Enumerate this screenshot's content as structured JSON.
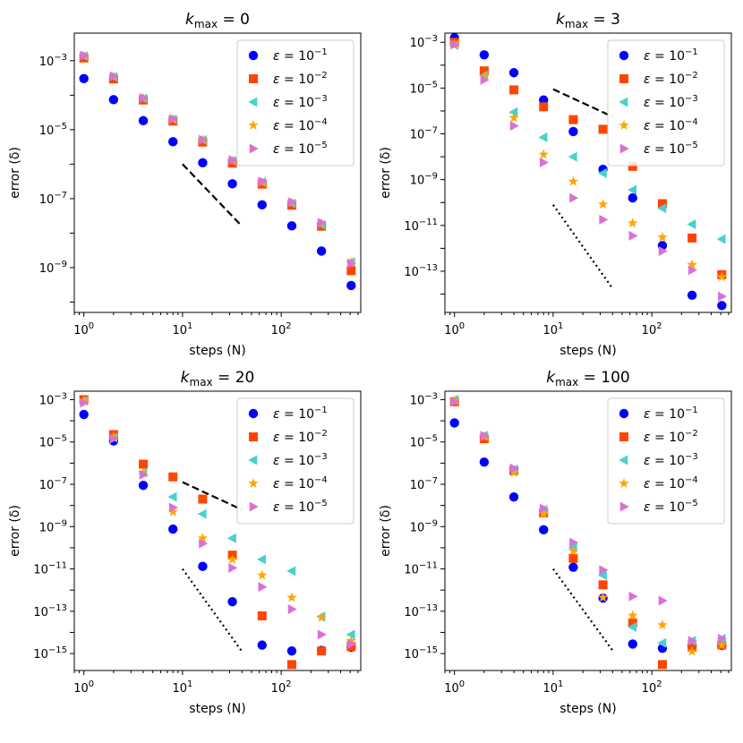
{
  "figure": {
    "description_colors": {
      "1e-1": "#0000ff",
      "1e-2": "#ff4500",
      "1e-3": "#48d1cc",
      "1e-4": "#ffa500",
      "1e-5": "#da70d6"
    }
  },
  "chart_data": [
    {
      "type": "scatter",
      "title_prefix": "k",
      "title_sub": "max",
      "title_value": "= 0",
      "xlabel": "steps (N)",
      "ylabel": "error (δ)",
      "xscale": "log",
      "yscale": "log",
      "xlim": [
        0.8,
        640
      ],
      "ylim_exp": [
        -10.3,
        -2.2
      ],
      "xticks": [
        {
          "base": "10",
          "exp": "0",
          "value": 1
        },
        {
          "base": "10",
          "exp": "1",
          "value": 10
        },
        {
          "base": "10",
          "exp": "2",
          "value": 100
        }
      ],
      "yticks": [
        {
          "base": "10",
          "exp": "−3",
          "value_exp": -3
        },
        {
          "base": "10",
          "exp": "−5",
          "value_exp": -5
        },
        {
          "base": "10",
          "exp": "−7",
          "value_exp": -7
        },
        {
          "base": "10",
          "exp": "−9",
          "value_exp": -9
        }
      ],
      "x": [
        1,
        2,
        4,
        8,
        16,
        32,
        64,
        128,
        256,
        512
      ],
      "series": [
        {
          "name_base": "ε = 10",
          "name_exp": "−1",
          "marker": "circle",
          "color": "#0000ff",
          "log10_values": [
            -3.52,
            -4.13,
            -4.74,
            -5.35,
            -5.96,
            -6.57,
            -7.18,
            -7.79,
            -8.52,
            -9.52
          ]
        },
        {
          "name_base": "ε = 10",
          "name_exp": "−2",
          "marker": "square",
          "color": "#ff4500",
          "log10_values": [
            -2.92,
            -3.53,
            -4.14,
            -4.75,
            -5.36,
            -5.97,
            -6.58,
            -7.19,
            -7.8,
            -9.09
          ]
        },
        {
          "name_base": "ε = 10",
          "name_exp": "−3",
          "marker": "triangle-left",
          "color": "#48d1cc",
          "log10_values": [
            -2.87,
            -3.47,
            -4.1,
            -4.7,
            -5.3,
            -5.9,
            -6.52,
            -7.14,
            -7.76,
            -8.84
          ]
        },
        {
          "name_base": "ε = 10",
          "name_exp": "−4",
          "marker": "star",
          "color": "#ffa500",
          "log10_values": [
            -2.86,
            -3.46,
            -4.09,
            -4.7,
            -5.3,
            -5.9,
            -6.53,
            -7.12,
            -7.72,
            -8.85
          ]
        },
        {
          "name_base": "ε = 10",
          "name_exp": "−5",
          "marker": "triangle-right",
          "color": "#da70d6",
          "log10_values": [
            -2.85,
            -3.45,
            -4.08,
            -4.69,
            -5.29,
            -5.88,
            -6.5,
            -7.1,
            -7.7,
            -8.88
          ]
        }
      ],
      "guides": [
        {
          "style": "dashed",
          "x": [
            10,
            40
          ],
          "log10_y": [
            -6.0,
            -7.8
          ]
        }
      ],
      "legend_position": "top-right"
    },
    {
      "type": "scatter",
      "title_prefix": "k",
      "title_sub": "max",
      "title_value": "= 3",
      "xlabel": "steps (N)",
      "ylabel": "error (δ)",
      "xscale": "log",
      "yscale": "log",
      "xlim": [
        0.8,
        640
      ],
      "ylim_exp": [
        -14.8,
        -2.6
      ],
      "xticks": [
        {
          "base": "10",
          "exp": "0",
          "value": 1
        },
        {
          "base": "10",
          "exp": "1",
          "value": 10
        },
        {
          "base": "10",
          "exp": "2",
          "value": 100
        }
      ],
      "yticks": [
        {
          "base": "10",
          "exp": "−3",
          "value_exp": -3
        },
        {
          "base": "10",
          "exp": "−5",
          "value_exp": -5
        },
        {
          "base": "10",
          "exp": "−7",
          "value_exp": -7
        },
        {
          "base": "10",
          "exp": "−9",
          "value_exp": -9
        },
        {
          "base": "10",
          "exp": "−11",
          "value_exp": -11
        },
        {
          "base": "10",
          "exp": "−13",
          "value_exp": -13
        }
      ],
      "x": [
        1,
        2,
        4,
        8,
        16,
        32,
        64,
        128,
        256,
        512
      ],
      "series": [
        {
          "name_base": "ε = 10",
          "name_exp": "−1",
          "marker": "circle",
          "color": "#0000ff",
          "log10_values": [
            -2.8,
            -3.55,
            -4.33,
            -5.52,
            -6.9,
            -8.55,
            -9.8,
            -11.88,
            -14.05,
            -14.5
          ]
        },
        {
          "name_base": "ε = 10",
          "name_exp": "−2",
          "marker": "square",
          "color": "#ff4500",
          "log10_values": [
            -3.0,
            -4.25,
            -5.08,
            -5.82,
            -6.38,
            -6.8,
            -8.42,
            -10.05,
            -11.55,
            -13.15
          ]
        },
        {
          "name_base": "ε = 10",
          "name_exp": "−3",
          "marker": "triangle-left",
          "color": "#48d1cc",
          "log10_values": [
            -3.12,
            -4.45,
            -6.05,
            -7.15,
            -8.0,
            -8.72,
            -9.45,
            -10.25,
            -10.95,
            -11.6
          ]
        },
        {
          "name_base": "ε = 10",
          "name_exp": "−4",
          "marker": "star",
          "color": "#ffa500",
          "log10_values": [
            -3.08,
            -4.5,
            -6.3,
            -7.9,
            -9.08,
            -10.08,
            -10.9,
            -11.52,
            -12.72,
            -13.25
          ]
        },
        {
          "name_base": "ε = 10",
          "name_exp": "−5",
          "marker": "triangle-right",
          "color": "#da70d6",
          "log10_values": [
            -3.1,
            -4.65,
            -6.65,
            -8.25,
            -9.8,
            -10.75,
            -11.45,
            -12.12,
            -12.95,
            -14.1
          ]
        }
      ],
      "guides": [
        {
          "style": "dashed",
          "x": [
            10,
            40
          ],
          "log10_y": [
            -5.05,
            -6.25
          ]
        },
        {
          "style": "dotted",
          "x": [
            10,
            40
          ],
          "log10_y": [
            -10.1,
            -13.75
          ]
        }
      ],
      "legend_position": "top-right"
    },
    {
      "type": "scatter",
      "title_prefix": "k",
      "title_sub": "max",
      "title_value": "= 20",
      "xlabel": "steps (N)",
      "ylabel": "error (δ)",
      "xscale": "log",
      "yscale": "log",
      "xlim": [
        0.8,
        640
      ],
      "ylim_exp": [
        -15.8,
        -2.6
      ],
      "xticks": [
        {
          "base": "10",
          "exp": "0",
          "value": 1
        },
        {
          "base": "10",
          "exp": "1",
          "value": 10
        },
        {
          "base": "10",
          "exp": "2",
          "value": 100
        }
      ],
      "yticks": [
        {
          "base": "10",
          "exp": "−3",
          "value_exp": -3
        },
        {
          "base": "10",
          "exp": "−5",
          "value_exp": -5
        },
        {
          "base": "10",
          "exp": "−7",
          "value_exp": -7
        },
        {
          "base": "10",
          "exp": "−9",
          "value_exp": -9
        },
        {
          "base": "10",
          "exp": "−11",
          "value_exp": -11
        },
        {
          "base": "10",
          "exp": "−13",
          "value_exp": -13
        },
        {
          "base": "10",
          "exp": "−15",
          "value_exp": -15
        }
      ],
      "x": [
        1,
        2,
        4,
        8,
        16,
        32,
        64,
        128,
        256,
        512
      ],
      "series": [
        {
          "name_base": "ε = 10",
          "name_exp": "−1",
          "marker": "circle",
          "color": "#0000ff",
          "log10_values": [
            -3.7,
            -4.95,
            -7.05,
            -9.12,
            -10.88,
            -12.55,
            -14.6,
            -14.88,
            -14.85,
            -14.7
          ]
        },
        {
          "name_base": "ε = 10",
          "name_exp": "−2",
          "marker": "square",
          "color": "#ff4500",
          "log10_values": [
            -3.0,
            -4.65,
            -6.05,
            -6.65,
            -7.7,
            -10.35,
            -13.22,
            -15.52,
            -14.88,
            -14.67
          ]
        },
        {
          "name_base": "ε = 10",
          "name_exp": "−3",
          "marker": "triangle-left",
          "color": "#48d1cc",
          "log10_values": [
            -3.05,
            -4.8,
            -6.45,
            -7.6,
            -8.4,
            -9.55,
            -10.55,
            -11.1,
            -13.25,
            -14.1
          ]
        },
        {
          "name_base": "ε = 10",
          "name_exp": "−4",
          "marker": "star",
          "color": "#ffa500",
          "log10_values": [
            -3.05,
            -4.75,
            -6.45,
            -8.3,
            -9.55,
            -10.55,
            -11.3,
            -12.35,
            -13.3,
            -14.4
          ]
        },
        {
          "name_base": "ε = 10",
          "name_exp": "−5",
          "marker": "triangle-right",
          "color": "#da70d6",
          "log10_values": [
            -3.15,
            -4.85,
            -6.55,
            -8.1,
            -9.8,
            -10.95,
            -11.85,
            -12.9,
            -14.1,
            -14.55
          ]
        }
      ],
      "guides": [
        {
          "style": "dashed",
          "x": [
            10,
            40
          ],
          "log10_y": [
            -6.9,
            -8.2
          ]
        },
        {
          "style": "dotted",
          "x": [
            10,
            40
          ],
          "log10_y": [
            -11.0,
            -14.9
          ]
        }
      ],
      "legend_position": "top-right"
    },
    {
      "type": "scatter",
      "title_prefix": "k",
      "title_sub": "max",
      "title_value": "= 100",
      "xlabel": "steps (N)",
      "ylabel": "error (δ)",
      "xscale": "log",
      "yscale": "log",
      "xlim": [
        0.8,
        640
      ],
      "ylim_exp": [
        -15.8,
        -2.6
      ],
      "xticks": [
        {
          "base": "10",
          "exp": "0",
          "value": 1
        },
        {
          "base": "10",
          "exp": "1",
          "value": 10
        },
        {
          "base": "10",
          "exp": "2",
          "value": 100
        }
      ],
      "yticks": [
        {
          "base": "10",
          "exp": "−3",
          "value_exp": -3
        },
        {
          "base": "10",
          "exp": "−5",
          "value_exp": -5
        },
        {
          "base": "10",
          "exp": "−7",
          "value_exp": -7
        },
        {
          "base": "10",
          "exp": "−9",
          "value_exp": -9
        },
        {
          "base": "10",
          "exp": "−11",
          "value_exp": -11
        },
        {
          "base": "10",
          "exp": "−13",
          "value_exp": -13
        },
        {
          "base": "10",
          "exp": "−15",
          "value_exp": -15
        }
      ],
      "x": [
        1,
        2,
        4,
        8,
        16,
        32,
        64,
        128,
        256,
        512
      ],
      "series": [
        {
          "name_base": "ε = 10",
          "name_exp": "−1",
          "marker": "circle",
          "color": "#0000ff",
          "log10_values": [
            -4.1,
            -5.95,
            -7.6,
            -9.15,
            -10.92,
            -12.38,
            -14.55,
            -14.75,
            -14.62,
            -14.62
          ]
        },
        {
          "name_base": "ε = 10",
          "name_exp": "−2",
          "marker": "square",
          "color": "#ff4500",
          "log10_values": [
            -3.1,
            -4.85,
            -6.35,
            -8.35,
            -10.5,
            -11.75,
            -13.55,
            -15.52,
            -14.7,
            -14.6
          ]
        },
        {
          "name_base": "ε = 10",
          "name_exp": "−3",
          "marker": "triangle-left",
          "color": "#48d1cc",
          "log10_values": [
            -3.0,
            -4.7,
            -6.3,
            -8.2,
            -10.0,
            -11.3,
            -13.75,
            -14.5,
            -14.4,
            -14.3
          ]
        },
        {
          "name_base": "ε = 10",
          "name_exp": "−4",
          "marker": "star",
          "color": "#ffa500",
          "log10_values": [
            -3.05,
            -4.75,
            -6.45,
            -8.4,
            -10.15,
            -12.35,
            -13.2,
            -13.65,
            -14.9,
            -14.6
          ]
        },
        {
          "name_base": "ε = 10",
          "name_exp": "−5",
          "marker": "triangle-right",
          "color": "#da70d6",
          "log10_values": [
            -3.1,
            -4.7,
            -6.25,
            -8.15,
            -9.75,
            -11.05,
            -12.3,
            -12.5,
            -14.4,
            -14.3
          ]
        }
      ],
      "guides": [
        {
          "style": "dotted",
          "x": [
            10,
            40
          ],
          "log10_y": [
            -11.0,
            -14.85
          ]
        }
      ],
      "legend_position": "top-right"
    }
  ]
}
